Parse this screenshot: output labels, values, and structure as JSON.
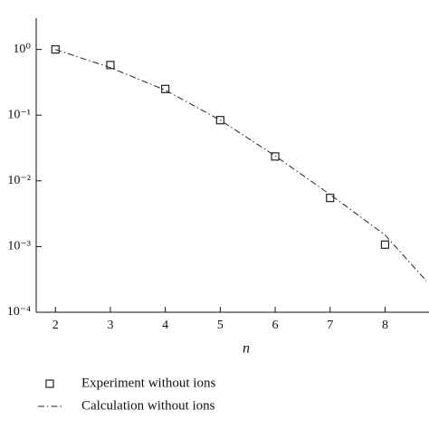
{
  "chart_data": {
    "type": "scatter-line",
    "x_label": "n",
    "ylog": true,
    "grid": false,
    "xlim": [
      1.65,
      8.8
    ],
    "ylim": [
      0.0001,
      3
    ],
    "xticks": [
      2,
      3,
      4,
      5,
      6,
      7,
      8
    ],
    "yticks": [
      {
        "value": 1,
        "label": "10⁰"
      },
      {
        "value": 0.1,
        "label": "10⁻¹"
      },
      {
        "value": 0.01,
        "label": "10⁻²"
      },
      {
        "value": 0.001,
        "label": "10⁻³"
      },
      {
        "value": 0.0001,
        "label": "10⁻⁴"
      }
    ],
    "legend": "below",
    "series": [
      {
        "name": "Experiment without ions",
        "color": "#222222",
        "marker": "square",
        "x": [
          2,
          3,
          4,
          5,
          6,
          7,
          8
        ],
        "values": [
          1.0,
          0.58,
          0.25,
          0.084,
          0.0235,
          0.0055,
          0.00107
        ]
      },
      {
        "name": "Calculation without ions",
        "color": "#222222",
        "style": "dash-dot",
        "x": [
          2,
          3,
          4,
          5,
          6,
          7,
          8,
          8.75
        ],
        "values": [
          1.0,
          0.53,
          0.24,
          0.084,
          0.024,
          0.0062,
          0.0015,
          0.0003
        ]
      }
    ]
  }
}
